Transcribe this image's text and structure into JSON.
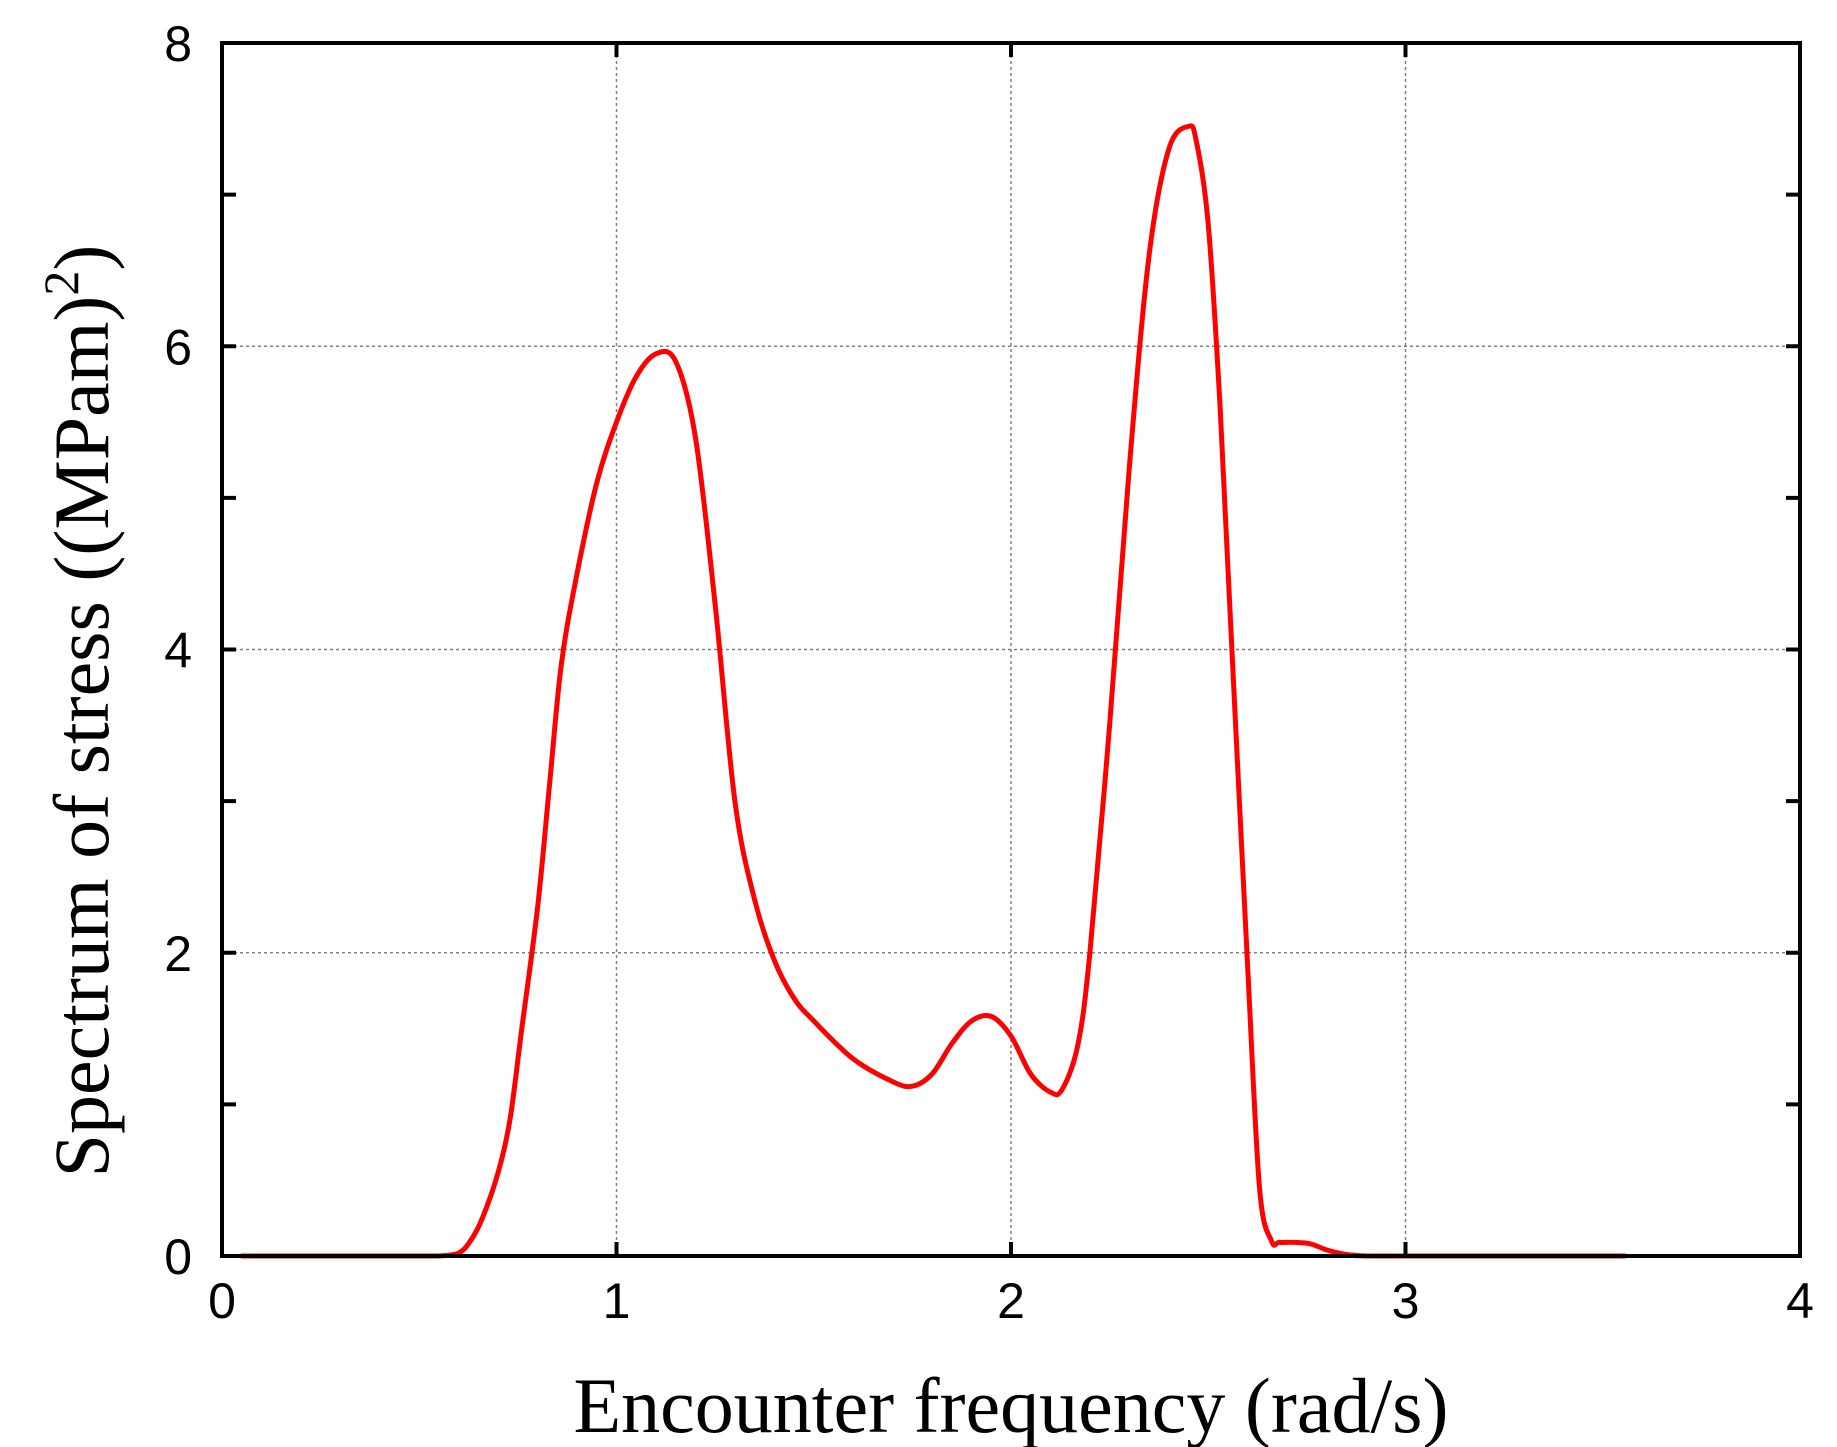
{
  "chart_data": {
    "type": "line",
    "xlabel": "Encounter frequency (rad/s)",
    "ylabel": {
      "prefix": "Spectrum of stress ((MPam)",
      "superscript": "2",
      "suffix": ")"
    },
    "xlim": [
      0,
      4
    ],
    "ylim": [
      0,
      8
    ],
    "xticks": [
      0,
      1,
      2,
      3,
      4
    ],
    "yticks": [
      0,
      2,
      4,
      6,
      8
    ],
    "yticks_minor": [
      1,
      3,
      5,
      7
    ],
    "grid": true,
    "line_color": "#ff0000",
    "series": [
      {
        "x": [
          0.05,
          0.5,
          0.55,
          0.6,
          0.63,
          0.66,
          0.7,
          0.73,
          0.76,
          0.8,
          0.83,
          0.86,
          0.9,
          0.95,
          1.0,
          1.05,
          1.1,
          1.15,
          1.2,
          1.25,
          1.3,
          1.35,
          1.4,
          1.45,
          1.5,
          1.6,
          1.7,
          1.75,
          1.8,
          1.85,
          1.9,
          1.95,
          2.0,
          2.05,
          2.1,
          2.13,
          2.17,
          2.2,
          2.25,
          2.3,
          2.35,
          2.4,
          2.45,
          2.47,
          2.5,
          2.53,
          2.56,
          2.6,
          2.63,
          2.66,
          2.68,
          2.72,
          2.76,
          2.8,
          2.85,
          2.9,
          3.0,
          3.5,
          3.55
        ],
        "y": [
          0.0,
          0.0,
          0.0,
          0.02,
          0.1,
          0.25,
          0.55,
          0.9,
          1.5,
          2.3,
          3.1,
          3.9,
          4.5,
          5.1,
          5.5,
          5.8,
          5.95,
          5.9,
          5.4,
          4.3,
          3.0,
          2.35,
          1.95,
          1.7,
          1.55,
          1.3,
          1.15,
          1.12,
          1.2,
          1.4,
          1.55,
          1.58,
          1.45,
          1.2,
          1.08,
          1.1,
          1.4,
          2.0,
          3.5,
          5.2,
          6.6,
          7.3,
          7.45,
          7.35,
          6.8,
          5.6,
          4.0,
          1.9,
          0.45,
          0.1,
          0.09,
          0.09,
          0.08,
          0.04,
          0.01,
          0.0,
          0.0,
          0.0,
          0.0
        ]
      }
    ]
  }
}
